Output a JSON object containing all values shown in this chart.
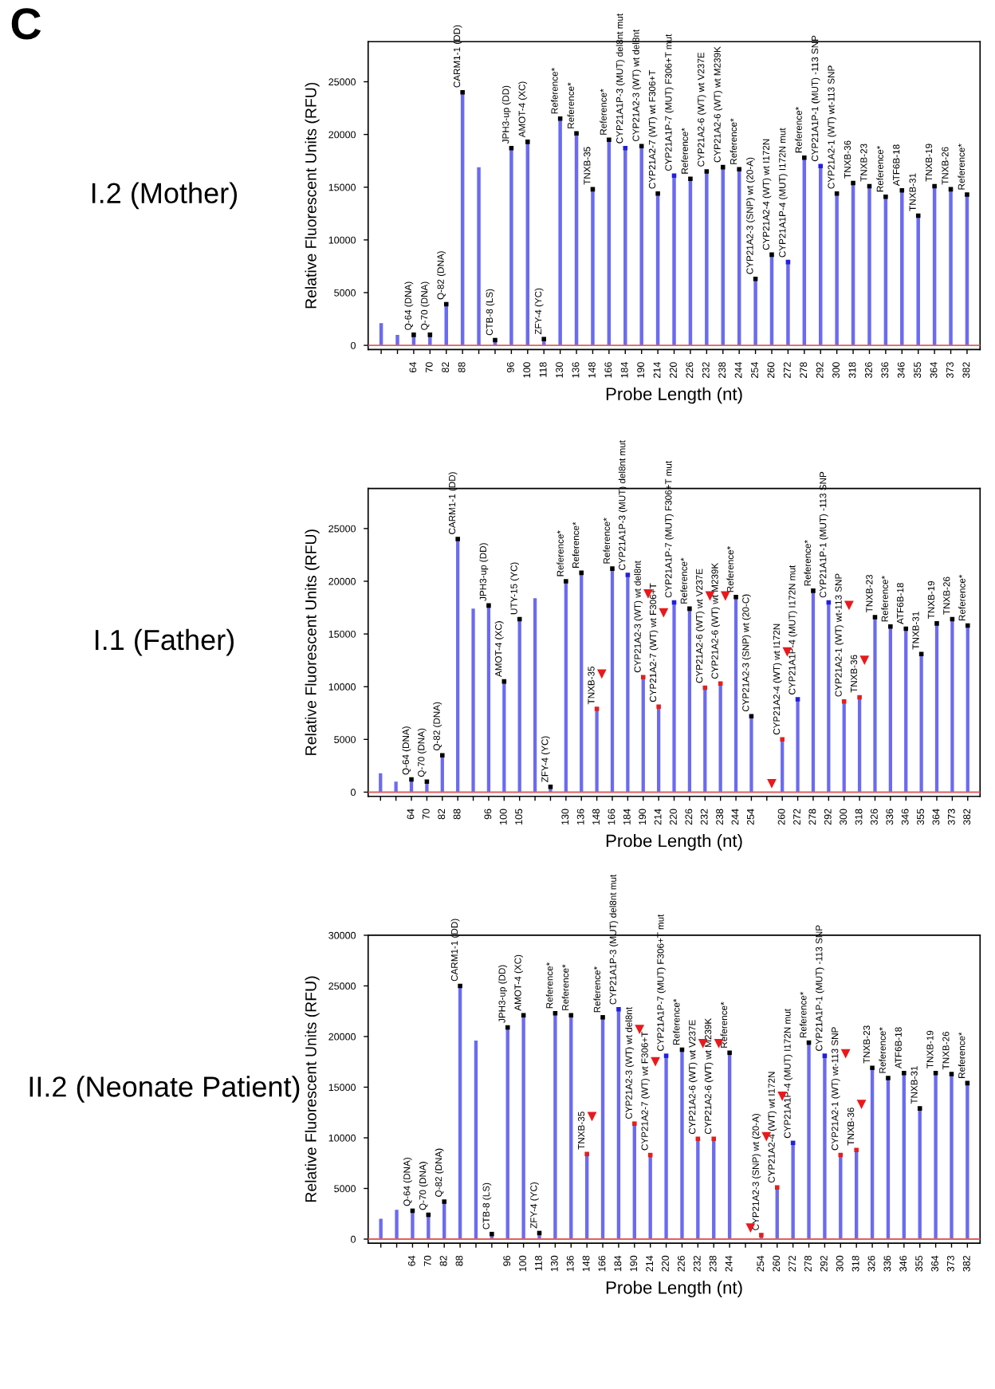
{
  "chart_data": [
    {
      "type": "bar",
      "title": "I.2 (Mother)",
      "annotations": [
        "C"
      ],
      "xlabel": "Probe Length (nt)",
      "ylabel": "Relative Fluorescent Units (RFU)",
      "ylim": [
        -400,
        28800
      ],
      "yticks": [
        0,
        5000,
        10000,
        15000,
        20000,
        25000
      ],
      "grid": false,
      "ref_lines": [
        {
          "axis": "y",
          "value": 0,
          "color": "#e06060"
        }
      ],
      "categories": [
        null,
        null,
        "64",
        "70",
        "82",
        "88",
        null,
        null,
        "96",
        "100",
        "118",
        "130",
        "136",
        "148",
        "166",
        "184",
        "190",
        "214",
        "220",
        "226",
        "232",
        "238",
        "244",
        "254",
        "260",
        "272",
        "278",
        "292",
        "300",
        "318",
        "326",
        "336",
        "346",
        "355",
        "364",
        "373",
        "382"
      ],
      "series": [
        {
          "color": "#6b6bf0",
          "values": [
            2100,
            1000,
            1000,
            1000,
            3900,
            24000,
            16900,
            500,
            18700,
            19300,
            600,
            21500,
            20100,
            14800,
            19500,
            18700,
            18900,
            14400,
            16100,
            15800,
            16500,
            16900,
            16700,
            6300,
            8600,
            7900,
            17800,
            17000,
            14400,
            15400,
            15100,
            14100,
            14700,
            12300,
            15100,
            14800,
            14300
          ],
          "value_labels": [
            null,
            null,
            "Q-64 (DNA)",
            "Q-70 (DNA)",
            "Q-82 (DNA)",
            "CARM1-1 (DD)",
            null,
            "CTB-8 (LS)",
            "JPH3-up (DD)",
            "AMOT-4 (XC)",
            "ZFY-4 (YC)",
            "Reference*",
            "Reference*",
            "TNXB-35",
            "Reference*",
            "CYP21A1P-3 (MUT) del8nt mut",
            "CYP21A2-3 (WT) wt del8nt",
            "CYP21A2-7 (WT) wt F306+T",
            "CYP21A1P-7 (MUT) F306+T mut",
            "Reference*",
            "CYP21A2-6 (WT) wt V237E",
            "CYP21A2-6 (WT) wt M239K",
            "Reference*",
            "CYP21A2-3 (SNP) wt (20-A)",
            "CYP21A2-4 (WT) wt I172N",
            "CYP21A1P-4 (MUT) I172N mut",
            "Reference*",
            "CYP21A1P-1 (MUT) -113 SNP",
            "CYP21A2-1 (WT) wt-113 SNP",
            "TNXB-36",
            "TNXB-23",
            "Reference*",
            "ATF6B-18",
            "TNXB-31",
            "TNXB-19",
            "TNXB-26",
            "Reference*"
          ]
        },
        {
          "type": "scatter",
          "marker": "square",
          "values": [
            null,
            null,
            1000,
            1000,
            3900,
            24000,
            null,
            500,
            18700,
            19300,
            600,
            21500,
            20100,
            14800,
            19500,
            18700,
            18900,
            14400,
            16100,
            15800,
            16500,
            16900,
            16700,
            6300,
            8600,
            7900,
            17800,
            17000,
            14400,
            15400,
            15100,
            14100,
            14700,
            12300,
            15100,
            14800,
            14300
          ],
          "colors": [
            "#000000",
            "#000000",
            "#000000",
            "#000000",
            "#000000",
            "#000000",
            "#000000",
            "#000000",
            "#000000",
            "#000000",
            "#000000",
            "#000000",
            "#000000",
            "#000000",
            "#000000",
            "#2020e0",
            "#000000",
            "#000000",
            "#2020e0",
            "#000000",
            "#000000",
            "#000000",
            "#000000",
            "#000000",
            "#000000",
            "#2020e0",
            "#000000",
            "#2020e0",
            "#000000",
            "#000000",
            "#000000",
            "#000000",
            "#000000",
            "#000000",
            "#000000",
            "#000000",
            "#000000"
          ]
        }
      ]
    },
    {
      "type": "bar",
      "title": "I.1 (Father)",
      "xlabel": "Probe Length (nt)",
      "ylabel": "Relative Fluorescent Units (RFU)",
      "ylim": [
        -400,
        28800
      ],
      "yticks": [
        0,
        5000,
        10000,
        15000,
        20000,
        25000
      ],
      "grid": false,
      "ref_lines": [
        {
          "axis": "y",
          "value": 0,
          "color": "#e06060"
        }
      ],
      "categories": [
        null,
        null,
        "64",
        "70",
        "82",
        "88",
        null,
        "96",
        "100",
        "105",
        null,
        null,
        "130",
        "136",
        "148",
        "166",
        "184",
        "190",
        "214",
        "220",
        "226",
        "232",
        "238",
        "244",
        "254",
        null,
        "260",
        "272",
        "278",
        "292",
        "300",
        "318",
        "326",
        "336",
        "346",
        "355",
        "364",
        "373",
        "382"
      ],
      "series": [
        {
          "color": "#6b6bf0",
          "values": [
            1800,
            1000,
            1200,
            1000,
            3500,
            24000,
            17400,
            17700,
            10500,
            16400,
            18400,
            500,
            20000,
            20800,
            7900,
            21200,
            20600,
            10900,
            8100,
            18000,
            17400,
            9900,
            10300,
            18500,
            7200,
            null,
            5000,
            8800,
            19100,
            18000,
            8600,
            9000,
            16600,
            15700,
            15500,
            13100,
            16000,
            16400,
            15800
          ],
          "value_labels": [
            null,
            null,
            "Q-64 (DNA)",
            "Q-70 (DNA)",
            "Q-82 (DNA)",
            "CARM1-1 (DD)",
            null,
            "JPH3-up (DD)",
            "AMOT-4 (XC)",
            "UTY-15 (YC)",
            null,
            "ZFY-4 (YC)",
            "Reference*",
            "Reference*",
            "TNXB-35",
            "Reference*",
            "CYP21A1P-3 (MUT) del8nt mut",
            "CYP21A2-3 (WT) wt del8nt",
            "CYP21A2-7 (WT) wt F306+T",
            "CYP21A1P-7 (MUT) F306+T mut",
            "Reference*",
            "CYP21A2-6 (WT) wt V237E",
            "CYP21A2-6 (WT) wt M239K",
            "Reference*",
            "CYP21A2-3 (SNP) wt (20-C)",
            null,
            "CYP21A2-4 (WT) wt I172N",
            "CYP21A1P-4 (MUT) I172N mut",
            "Reference*",
            "CYP21A1P-1 (MUT) -113 SNP",
            "CYP21A2-1 (WT) wt-113 SNP",
            "TNXB-36",
            "TNXB-23",
            "Reference*",
            "ATF6B-18",
            "TNXB-31",
            "TNXB-19",
            "TNXB-26",
            "Reference*"
          ]
        },
        {
          "type": "scatter",
          "marker": "square",
          "values": [
            null,
            null,
            1200,
            1000,
            3500,
            24000,
            null,
            17700,
            10500,
            16400,
            null,
            500,
            20000,
            20800,
            7900,
            21200,
            20600,
            10900,
            8100,
            18000,
            17400,
            9900,
            10300,
            18500,
            7200,
            null,
            5000,
            8800,
            19100,
            18000,
            8600,
            9000,
            16600,
            15700,
            15500,
            13100,
            16000,
            16400,
            15800
          ],
          "colors": [
            "#000000",
            "#000000",
            "#000000",
            "#000000",
            "#000000",
            "#000000",
            "#000000",
            "#000000",
            "#000000",
            "#000000",
            "#000000",
            "#000000",
            "#000000",
            "#000000",
            "#e02020",
            "#000000",
            "#2020e0",
            "#e02020",
            "#e02020",
            "#2020e0",
            "#000000",
            "#e02020",
            "#e02020",
            "#000000",
            "#000000",
            "#000000",
            "#e02020",
            "#2020e0",
            "#000000",
            "#2020e0",
            "#e02020",
            "#e02020",
            "#000000",
            "#000000",
            "#000000",
            "#000000",
            "#000000",
            "#000000",
            "#000000"
          ]
        },
        {
          "type": "scatter",
          "marker": "triangle",
          "color": "#e8191c",
          "values": [
            null,
            null,
            null,
            null,
            null,
            null,
            null,
            null,
            null,
            null,
            null,
            null,
            null,
            null,
            11200,
            null,
            null,
            18800,
            17000,
            null,
            null,
            18600,
            18600,
            null,
            null,
            800,
            13300,
            null,
            null,
            null,
            17700,
            12500,
            null,
            null,
            null,
            null,
            null,
            null,
            null
          ]
        }
      ]
    },
    {
      "type": "bar",
      "title": "II.2 (Neonate Patient)",
      "xlabel": "Probe Length (nt)",
      "ylabel": "Relative Fluorescent Units (RFU)",
      "ylim": [
        -400,
        30000
      ],
      "yticks": [
        0,
        5000,
        10000,
        15000,
        20000,
        25000,
        30000
      ],
      "grid": false,
      "ref_lines": [
        {
          "axis": "y",
          "value": 0,
          "color": "#e06060"
        }
      ],
      "categories": [
        null,
        null,
        "64",
        "70",
        "82",
        "88",
        null,
        null,
        "96",
        "100",
        "118",
        "130",
        "136",
        "148",
        "166",
        "184",
        "190",
        "214",
        "220",
        "226",
        "232",
        "238",
        "244",
        null,
        "254",
        "260",
        "272",
        "278",
        "292",
        "300",
        "318",
        "326",
        "336",
        "346",
        "355",
        "364",
        "373",
        "382"
      ],
      "series": [
        {
          "color": "#6b6bf0",
          "values": [
            2000,
            2900,
            2800,
            2400,
            3700,
            25000,
            19600,
            500,
            20900,
            22100,
            600,
            22300,
            22100,
            8400,
            21900,
            22700,
            11400,
            8300,
            18100,
            18700,
            9900,
            9900,
            18400,
            null,
            400,
            5100,
            9500,
            19400,
            18100,
            8300,
            8800,
            16900,
            15900,
            16400,
            12900,
            16400,
            16300,
            15400
          ],
          "value_labels": [
            null,
            null,
            "Q-64 (DNA)",
            "Q-70 (DNA)",
            "Q-82 (DNA)",
            "CARM1-1 (DD)",
            null,
            "CTB-8 (LS)",
            "JPH3-up (DD)",
            "AMOT-4 (XC)",
            "ZFY-4 (YC)",
            "Reference*",
            "Reference*",
            "TNXB-35",
            "Reference*",
            "CYP21A1P-3 (MUT) del8nt mut",
            "CYP21A2-3 (WT) wt del8nt",
            "CYP21A2-7 (WT) wt F306+T",
            "CYP21A1P-7 (MUT) F306+T mut",
            "Reference*",
            "CYP21A2-6 (WT) wt V237E",
            "CYP21A2-6 (WT) wt M239K",
            "Reference*",
            null,
            "CYP21A2-3 (SNP) wt (20-A)",
            "CYP21A2-4 (WT) wt I172N",
            "CYP21A1P-4 (MUT) I172N mut",
            "Reference*",
            "CYP21A1P-1 (MUT) -113 SNP",
            "CYP21A2-1 (WT) wt-113 SNP",
            "TNXB-36",
            "TNXB-23",
            "Reference*",
            "ATF6B-18",
            "TNXB-31",
            "TNXB-19",
            "TNXB-26",
            "Reference*"
          ]
        },
        {
          "type": "scatter",
          "marker": "square",
          "values": [
            null,
            null,
            2800,
            2400,
            3700,
            25000,
            null,
            500,
            20900,
            22100,
            600,
            22300,
            22100,
            8400,
            21900,
            22700,
            11400,
            8300,
            18100,
            18700,
            9900,
            9900,
            18400,
            null,
            400,
            5100,
            9500,
            19400,
            18100,
            8300,
            8800,
            16900,
            15900,
            16400,
            12900,
            16400,
            16300,
            15400
          ],
          "colors": [
            "#000000",
            "#000000",
            "#000000",
            "#000000",
            "#000000",
            "#000000",
            "#000000",
            "#000000",
            "#000000",
            "#000000",
            "#000000",
            "#000000",
            "#000000",
            "#e02020",
            "#000000",
            "#2020e0",
            "#e02020",
            "#e02020",
            "#2020e0",
            "#000000",
            "#e02020",
            "#e02020",
            "#000000",
            "#000000",
            "#e02020",
            "#e02020",
            "#2020e0",
            "#000000",
            "#2020e0",
            "#e02020",
            "#e02020",
            "#000000",
            "#000000",
            "#000000",
            "#000000",
            "#000000",
            "#000000",
            "#000000"
          ]
        },
        {
          "type": "scatter",
          "marker": "triangle",
          "color": "#e8191c",
          "values": [
            null,
            null,
            null,
            null,
            null,
            null,
            null,
            null,
            null,
            null,
            null,
            null,
            null,
            12100,
            null,
            null,
            20700,
            17500,
            null,
            null,
            19300,
            19300,
            null,
            1100,
            10100,
            14100,
            null,
            null,
            null,
            18300,
            13300,
            null,
            null,
            null,
            null,
            null,
            null,
            null
          ]
        }
      ]
    }
  ]
}
